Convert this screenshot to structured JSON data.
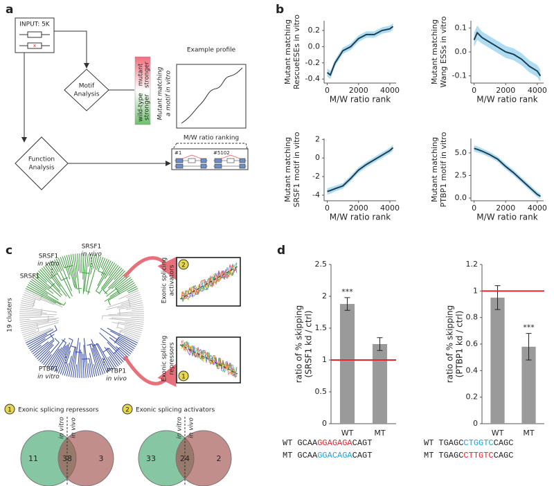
{
  "panel_labels": [
    "a",
    "b",
    "c",
    "d"
  ],
  "panel_a": {
    "input": "INPUT: 5K",
    "mutation_mark": "x",
    "motif": [
      "Motif",
      "Analysis"
    ],
    "function": [
      "Function",
      "Analysis"
    ],
    "example_title": "Example profile",
    "mutant_stronger": [
      "mutant",
      "stronger"
    ],
    "wild_type_stronger": [
      "wild-type",
      "stronger"
    ],
    "profile_y_label": [
      "Mutant matching",
      "a motif in vitro"
    ],
    "profile_x_label": "M/W ratio ranking",
    "first_rank": "#1",
    "last_rank": "#5102"
  },
  "chart_data": [
    {
      "type": "line",
      "y_label": [
        "Mutant matching",
        "RescueESEs in vitro"
      ],
      "x_label": "M/W ratio rank",
      "x": [
        0,
        200,
        500,
        1000,
        1500,
        2000,
        2500,
        3000,
        3500,
        4000,
        4200
      ],
      "values": [
        -0.32,
        -0.35,
        -0.2,
        -0.05,
        0.0,
        0.1,
        0.15,
        0.15,
        0.2,
        0.22,
        0.25
      ],
      "errors": [
        0.05,
        0.05,
        0.04,
        0.04,
        0.04,
        0.04,
        0.04,
        0.04,
        0.04,
        0.04,
        0.04
      ],
      "color": "#1d3d4f",
      "band_color": "#aedcf2",
      "xlim": [
        -200,
        4400
      ],
      "xticks": [
        0,
        2000,
        4000
      ],
      "ylim": [
        -0.45,
        0.32
      ],
      "yticks": [
        -0.4,
        -0.2,
        {
          "value": 0,
          "label": "0.0"
        },
        0.2
      ]
    },
    {
      "type": "line",
      "y_label": [
        "Mutant matching",
        "Wang ESSs in vitro"
      ],
      "x_label": "M/W ratio rank",
      "x": [
        0,
        200,
        500,
        1000,
        1500,
        2000,
        2500,
        3000,
        3500,
        4000,
        4200
      ],
      "values": [
        0.05,
        0.08,
        0.06,
        0.04,
        0.02,
        0.0,
        -0.01,
        -0.03,
        -0.06,
        -0.08,
        -0.1
      ],
      "errors": [
        0.03,
        0.03,
        0.025,
        0.025,
        0.025,
        0.025,
        0.025,
        0.025,
        0.025,
        0.025,
        0.025
      ],
      "color": "#1d3d4f",
      "band_color": "#aedcf2",
      "xlim": [
        -200,
        4400
      ],
      "xticks": [
        0,
        2000,
        4000
      ],
      "ylim": [
        -0.13,
        0.13
      ],
      "yticks": [
        -0.1,
        {
          "value": 0,
          "label": "0.0"
        },
        0.1
      ]
    },
    {
      "type": "line",
      "y_label": [
        "Mutant matching",
        "SRSF1 motif in vitro"
      ],
      "x_label": "M/W ratio rank",
      "x": [
        0,
        200,
        500,
        1000,
        1500,
        2000,
        2500,
        3000,
        3500,
        4000,
        4200
      ],
      "values": [
        -3.6,
        -3.5,
        -3.3,
        -3.0,
        -2.2,
        -1.3,
        -0.7,
        -0.2,
        0.3,
        0.8,
        1.1
      ],
      "errors": [
        0.35,
        0.35,
        0.3,
        0.3,
        0.3,
        0.3,
        0.3,
        0.3,
        0.3,
        0.3,
        0.3
      ],
      "color": "#1d3d4f",
      "band_color": "#aedcf2",
      "xlim": [
        -200,
        4400
      ],
      "xticks": [
        0,
        2000,
        4000
      ],
      "ylim": [
        -4.6,
        2.1
      ],
      "yticks": [
        -4,
        -2,
        0,
        2
      ]
    },
    {
      "type": "line",
      "y_label": [
        "Mutant matching",
        "PTBP1 motif in vitro"
      ],
      "x_label": "M/W ratio rank",
      "x": [
        0,
        200,
        500,
        1000,
        1500,
        2000,
        2500,
        3000,
        3500,
        4000,
        4200
      ],
      "values": [
        5.5,
        5.4,
        5.2,
        4.8,
        4.3,
        3.5,
        2.8,
        2.0,
        1.2,
        0.4,
        0.2
      ],
      "errors": [
        0.35,
        0.35,
        0.3,
        0.3,
        0.3,
        0.3,
        0.3,
        0.3,
        0.3,
        0.3,
        0.3
      ],
      "color": "#1d3d4f",
      "band_color": "#aedcf2",
      "xlim": [
        -200,
        4400
      ],
      "xticks": [
        0,
        2000,
        4000
      ],
      "ylim": [
        -0.3,
        6.6
      ],
      "yticks": [
        {
          "value": 0,
          "label": "0.0"
        },
        {
          "value": 2.5,
          "label": "2.5"
        },
        {
          "value": 5,
          "label": "5.0"
        }
      ]
    },
    {
      "type": "bar",
      "y_label": [
        "ratio of % skipping",
        "(SRSF1 kd / ctrl)"
      ],
      "categories": [
        "WT",
        "MT"
      ],
      "values": [
        1.88,
        1.25
      ],
      "errors": [
        0.1,
        0.1
      ],
      "annotations": [
        "***",
        null
      ],
      "color": "#9a9a9a",
      "ref_line": 1,
      "ref_color": "#e8242b",
      "ylim": [
        0,
        2.5
      ],
      "yticks": [
        0,
        0.5,
        1,
        1.5,
        2,
        2.5
      ]
    },
    {
      "type": "bar",
      "y_label": [
        "ratio of % skipping",
        "(PTBP1 kd / ctrl)"
      ],
      "categories": [
        "WT",
        "MT"
      ],
      "values": [
        0.95,
        0.58
      ],
      "errors": [
        0.09,
        0.1
      ],
      "annotations": [
        null,
        "***"
      ],
      "color": "#9a9a9a",
      "ref_line": 1,
      "ref_color": "#e8242b",
      "ylim": [
        0,
        1.2
      ],
      "yticks": [
        0,
        0.2,
        0.4,
        0.6,
        0.8,
        1,
        1.2
      ]
    }
  ],
  "panel_c": {
    "srsf1_vitro": [
      "SRSF1",
      "in vitro"
    ],
    "srsf1_vivo": [
      "SRSF1",
      "in vivo"
    ],
    "clusters": "19 clusters",
    "ptbp1_vitro": [
      "PTBP1",
      "in vitro"
    ],
    "ptbp1_vivo": [
      "PTBP1",
      "in vivo"
    ],
    "activators_axis": [
      "Exonic splicing",
      "activators"
    ],
    "repressors_axis": [
      "Exonic splicing",
      "repressors"
    ],
    "badge_1": "1",
    "badge_2": "2",
    "venns": [
      {
        "badge": "1",
        "title": "Exonic splicing repressors",
        "left_label": "in vitro",
        "right_label": "in vivo",
        "counts": [
          "11",
          "38",
          "3"
        ]
      },
      {
        "badge": "2",
        "title": "Exonic splicing activators",
        "left_label": "in vitro",
        "right_label": "in vivo",
        "counts": [
          "33",
          "24",
          "2"
        ]
      }
    ]
  },
  "sequences": {
    "srsf1": [
      {
        "label": "WT",
        "parts": [
          "GCAA",
          "GGAGAGA",
          "CAGT"
        ]
      },
      {
        "label": "MT",
        "parts": [
          "GCAA",
          "GGACAGA",
          "CAGT"
        ]
      }
    ],
    "ptbp1": [
      {
        "label": "WT",
        "parts": [
          "TGAGC",
          "CTGGTC",
          "CAGC"
        ]
      },
      {
        "label": "MT",
        "parts": [
          "TGAGC",
          "CTTGTC",
          "CAGC"
        ]
      }
    ]
  }
}
